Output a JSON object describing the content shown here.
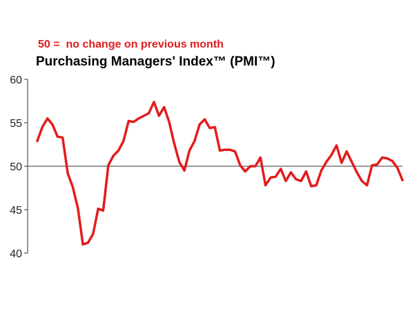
{
  "chart_data": {
    "type": "line",
    "title": "Purchasing Managers' Index™ (PMI™)",
    "subtitle": "50 =  no change on previous month",
    "xlabel": "",
    "ylabel": "",
    "ylim": [
      40,
      60
    ],
    "yticks": [
      40,
      45,
      50,
      55,
      60
    ],
    "reference_line": 50,
    "grid": false,
    "colors": {
      "line": "#e31b1b",
      "subtitle": "#e31b1b",
      "axis": "#333333"
    },
    "series": [
      {
        "values": [
          52.9,
          54.5,
          55.5,
          54.8,
          53.4,
          53.3,
          49.2,
          47.6,
          45.2,
          41.0,
          41.2,
          42.2,
          45.1,
          44.9,
          50.1,
          51.2,
          51.8,
          52.9,
          55.2,
          55.1,
          55.5,
          55.8,
          56.1,
          57.4,
          55.8,
          56.8,
          55.1,
          52.6,
          50.5,
          49.5,
          51.8,
          52.9,
          54.8,
          55.4,
          54.4,
          54.5,
          51.8,
          51.9,
          51.9,
          51.7,
          50.1,
          49.4,
          50.0,
          50.0,
          51.0,
          47.8,
          48.7,
          48.8,
          49.7,
          48.3,
          49.3,
          48.5,
          48.3,
          49.4,
          47.7,
          47.8,
          49.5,
          50.5,
          51.3,
          52.4,
          50.4,
          51.7,
          50.5,
          49.3,
          48.3,
          47.8,
          50.1,
          50.2,
          51.0,
          50.9,
          50.6,
          49.8,
          48.4
        ]
      }
    ]
  }
}
